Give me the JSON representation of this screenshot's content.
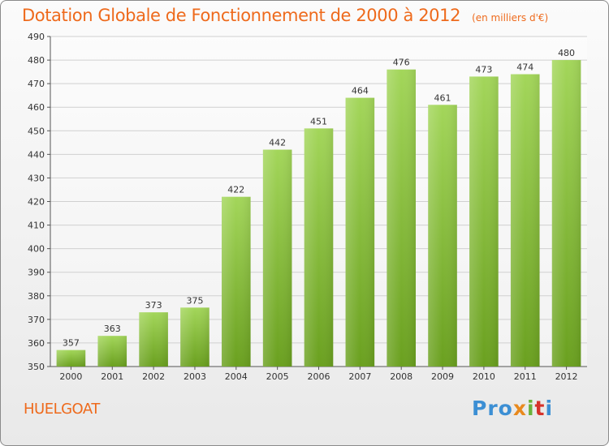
{
  "header": {
    "title": "Dotation Globale de Fonctionnement de 2000 à 2012",
    "unit": "(en milliers d'€)"
  },
  "footer": {
    "place": "HUELGOAT",
    "logo": [
      "Pro",
      "x",
      "i",
      "t",
      "i"
    ]
  },
  "colors": {
    "title": "#ee6a1c",
    "bar_light": "#a3d65a",
    "bar_dark": "#6aa01f",
    "grid": "#d0d0d0"
  },
  "chart_data": {
    "type": "bar",
    "title": "Dotation Globale de Fonctionnement de 2000 à 2012",
    "unit_label": "(en milliers d'€)",
    "xlabel": "",
    "ylabel": "",
    "categories": [
      "2000",
      "2001",
      "2002",
      "2003",
      "2004",
      "2005",
      "2006",
      "2007",
      "2008",
      "2009",
      "2010",
      "2011",
      "2012"
    ],
    "values": [
      357,
      363,
      373,
      375,
      422,
      442,
      451,
      464,
      476,
      461,
      473,
      474,
      480
    ],
    "ylim": [
      350,
      490
    ],
    "yticks": [
      350,
      360,
      370,
      380,
      390,
      400,
      410,
      420,
      430,
      440,
      450,
      460,
      470,
      480,
      490
    ],
    "grid": true,
    "data_labels": true
  }
}
